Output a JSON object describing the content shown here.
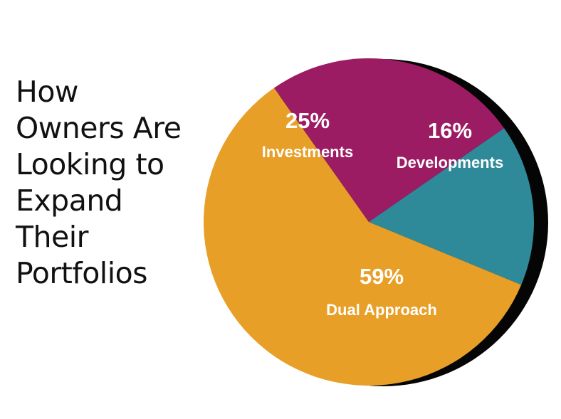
{
  "title_lines": [
    "How",
    "Owners Are",
    "Looking to",
    "Expand",
    "Their",
    "Portfolios"
  ],
  "chart_data": {
    "type": "pie",
    "title": "How Owners Are Looking to Expand Their Portfolios",
    "slices": [
      {
        "label": "Developments",
        "value": 16,
        "value_label": "16%",
        "color": "#2e8a99"
      },
      {
        "label": "Dual Approach",
        "value": 59,
        "value_label": "59%",
        "color": "#e79f27"
      },
      {
        "label": "Investments",
        "value": 25,
        "value_label": "25%",
        "color": "#9c1c63"
      }
    ]
  }
}
